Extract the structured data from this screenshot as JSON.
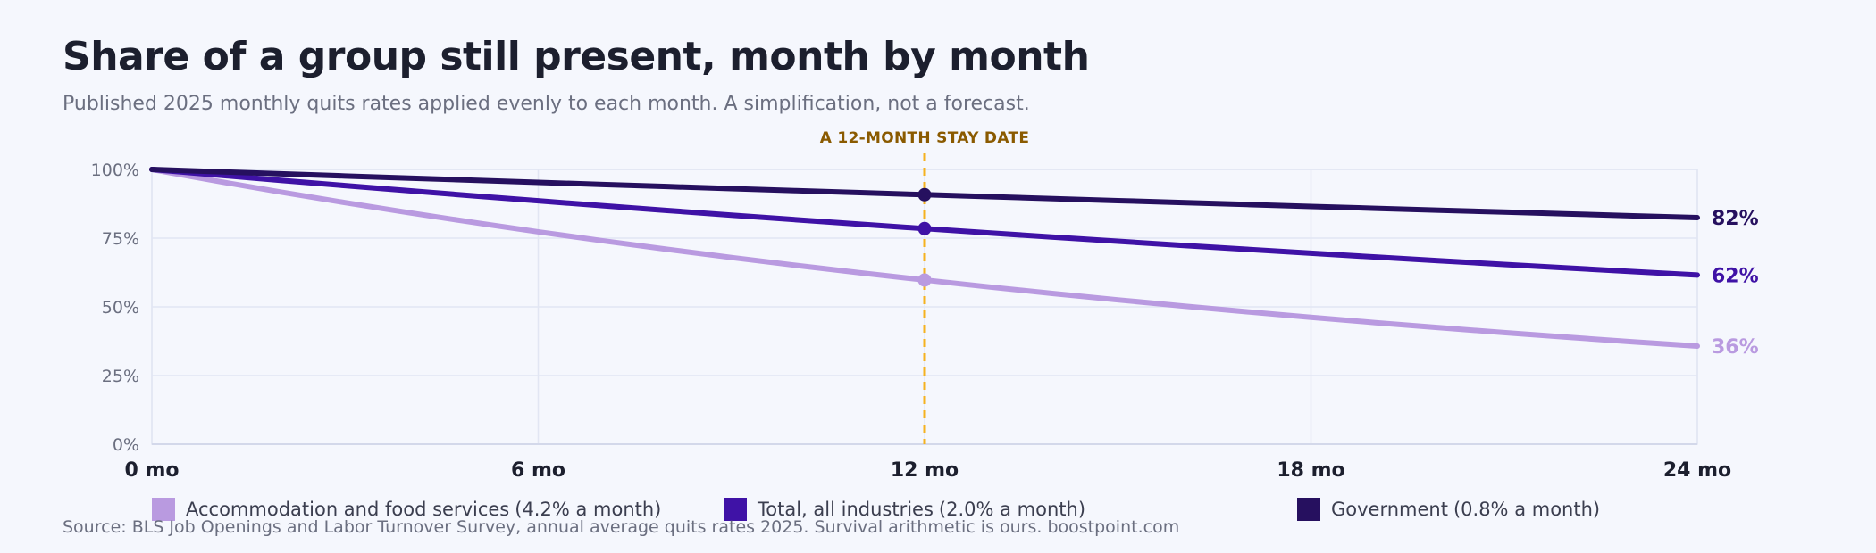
{
  "title": "Share of a group still present, month by month",
  "subtitle": "Published 2025 monthly quits rates applied evenly to each month. A simplification, not a forecast.",
  "source": "Source: BLS Job Openings and Labor Turnover Survey, annual average quits rates 2025. Survival arithmetic is ours. boostpoint.com",
  "chart_data": {
    "type": "line",
    "x_unit": "mo",
    "xlim": [
      0,
      24
    ],
    "x_ticks": [
      0,
      6,
      12,
      18,
      24
    ],
    "x_tick_labels": [
      "0 mo",
      "6 mo",
      "12 mo",
      "18 mo",
      "24 mo"
    ],
    "ylim": [
      0,
      100
    ],
    "y_ticks": [
      0,
      25,
      50,
      75,
      100
    ],
    "y_tick_labels": [
      "0%",
      "25%",
      "50%",
      "75%",
      "100%"
    ],
    "grid": true,
    "marker": {
      "x": 12,
      "label": "A 12-MONTH STAY DATE",
      "color": "#f5b21f"
    },
    "series": [
      {
        "name": "Accommodation and food services",
        "rate_label": "(4.2% a month)",
        "monthly_rate": 0.042,
        "end_label": "36%",
        "color": "#b99ae0"
      },
      {
        "name": "Total, all industries",
        "rate_label": "(2.0% a month)",
        "monthly_rate": 0.02,
        "end_label": "62%",
        "color": "#3f12a6"
      },
      {
        "name": "Government",
        "rate_label": "(0.8% a month)",
        "monthly_rate": 0.008,
        "end_label": "82%",
        "color": "#26105f"
      }
    ]
  }
}
